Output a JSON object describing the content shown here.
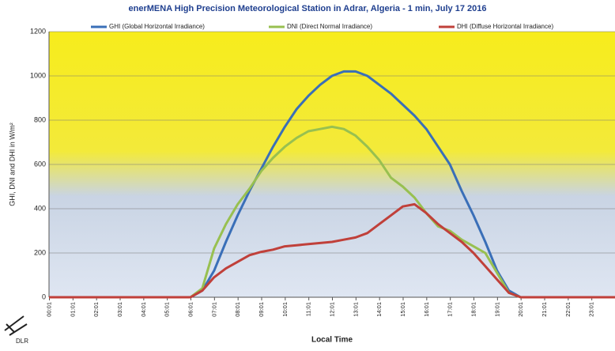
{
  "chart_data": {
    "type": "line",
    "title": "enerMENA High Precision Meteorological Station in Adrar, Algeria - 1 min, July 17 2016",
    "y_label": "GHI, DNI and DHI in W/m²",
    "x_label": "Local Time",
    "x": [
      0,
      0.5,
      1,
      1.5,
      2,
      2.5,
      3,
      3.5,
      4,
      4.5,
      5,
      5.5,
      6,
      6.5,
      7,
      7.5,
      8,
      8.5,
      9,
      9.5,
      10,
      10.5,
      11,
      11.5,
      12,
      12.5,
      13,
      13.5,
      14,
      14.5,
      15,
      15.5,
      16,
      16.5,
      17,
      17.5,
      18,
      18.5,
      19,
      19.5,
      20,
      20.5,
      21,
      21.5,
      22,
      22.5,
      23,
      23.5,
      24
    ],
    "series": [
      {
        "name": "GHI (Global Horizontal Irradiance)",
        "color": "#3a6fb8",
        "values": [
          0,
          0,
          0,
          0,
          0,
          0,
          0,
          0,
          0,
          0,
          0,
          0,
          0,
          30,
          120,
          250,
          370,
          480,
          580,
          680,
          770,
          850,
          910,
          960,
          1000,
          1020,
          1020,
          1000,
          960,
          920,
          870,
          820,
          760,
          680,
          600,
          480,
          370,
          250,
          120,
          30,
          0,
          0,
          0,
          0,
          0,
          0,
          0,
          0,
          0
        ]
      },
      {
        "name": "DNI (Direct Normal Irradiance)",
        "color": "#98c050",
        "values": [
          0,
          0,
          0,
          0,
          0,
          0,
          0,
          0,
          0,
          0,
          0,
          0,
          0,
          40,
          220,
          330,
          420,
          490,
          570,
          630,
          680,
          720,
          750,
          760,
          770,
          760,
          730,
          680,
          620,
          540,
          500,
          450,
          380,
          320,
          300,
          260,
          230,
          200,
          110,
          20,
          0,
          0,
          0,
          0,
          0,
          0,
          0,
          0,
          0
        ]
      },
      {
        "name": "DHI (Diffuse Horizontal Irradiance)",
        "color": "#c0403a",
        "values": [
          0,
          0,
          0,
          0,
          0,
          0,
          0,
          0,
          0,
          0,
          0,
          0,
          0,
          30,
          90,
          130,
          160,
          190,
          205,
          215,
          230,
          235,
          240,
          245,
          250,
          260,
          270,
          290,
          330,
          370,
          410,
          420,
          380,
          330,
          290,
          250,
          200,
          140,
          80,
          20,
          0,
          0,
          0,
          0,
          0,
          0,
          0,
          0,
          0
        ]
      }
    ],
    "xlim": [
      0,
      24
    ],
    "xticks": [
      {
        "value": 0.017,
        "label": "00:01"
      },
      {
        "value": 1.017,
        "label": "01:01"
      },
      {
        "value": 2.017,
        "label": "02:01"
      },
      {
        "value": 3.017,
        "label": "03:01"
      },
      {
        "value": 4.017,
        "label": "04:01"
      },
      {
        "value": 5.017,
        "label": "05:01"
      },
      {
        "value": 6.017,
        "label": "06:01"
      },
      {
        "value": 7.017,
        "label": "07:01"
      },
      {
        "value": 8.017,
        "label": "08:01"
      },
      {
        "value": 9.017,
        "label": "09:01"
      },
      {
        "value": 10.017,
        "label": "10:01"
      },
      {
        "value": 11.017,
        "label": "11:01"
      },
      {
        "value": 12.017,
        "label": "12:01"
      },
      {
        "value": 13.017,
        "label": "13:01"
      },
      {
        "value": 14.017,
        "label": "14:01"
      },
      {
        "value": 15.017,
        "label": "15:01"
      },
      {
        "value": 16.017,
        "label": "16:01"
      },
      {
        "value": 17.017,
        "label": "17:01"
      },
      {
        "value": 18.017,
        "label": "18:01"
      },
      {
        "value": 19.017,
        "label": "19:01"
      },
      {
        "value": 20.017,
        "label": "20:01"
      },
      {
        "value": 21.017,
        "label": "21:01"
      },
      {
        "value": 22.017,
        "label": "22:01"
      },
      {
        "value": 23.017,
        "label": "23:01"
      }
    ],
    "ylim": [
      0,
      1200
    ],
    "yticks": [
      0,
      200,
      400,
      600,
      800,
      1000,
      1200
    ],
    "grid": true,
    "legend": "top"
  },
  "logo_text": "DLR"
}
